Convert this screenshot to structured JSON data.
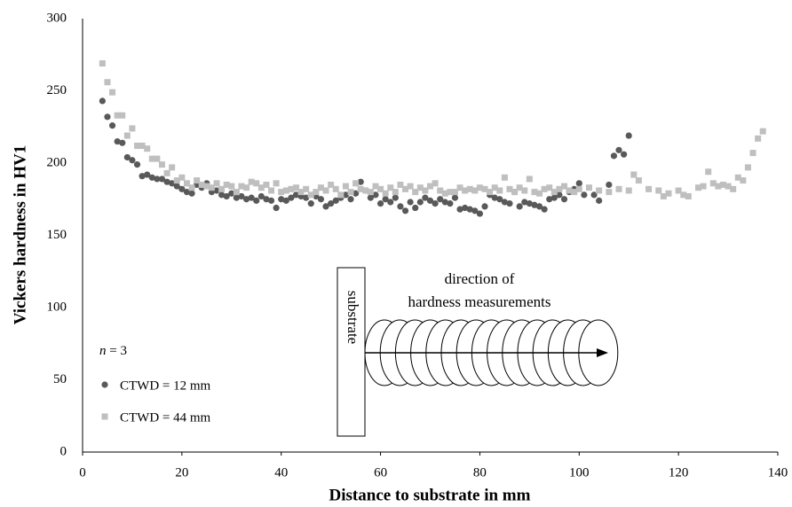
{
  "chart_data": {
    "type": "scatter",
    "xlabel": "Distance to substrate in mm",
    "ylabel": "Vickers hardness in HV1",
    "annotation": [
      "n",
      "= 3"
    ],
    "inset": {
      "block_label": "substrate",
      "direction_label": [
        "direction of",
        "hardness measurements"
      ]
    },
    "xlim": [
      0,
      140
    ],
    "xticks": [
      0,
      20,
      40,
      60,
      80,
      100,
      120,
      140
    ],
    "ylim": [
      0,
      300
    ],
    "yticks": [
      0,
      50,
      100,
      150,
      200,
      250,
      300
    ],
    "grid": false,
    "legend_position": "lower-left",
    "series": [
      {
        "name": "CTWD = 12 mm",
        "color": "#595959",
        "marker": "circle",
        "x": [
          4,
          5,
          6,
          7,
          8,
          9,
          10,
          11,
          12,
          13,
          14,
          15,
          16,
          17,
          18,
          19,
          20,
          21,
          22,
          23,
          24,
          25,
          26,
          27,
          28,
          29,
          30,
          31,
          32,
          33,
          34,
          35,
          36,
          37,
          38,
          39,
          40,
          41,
          42,
          43,
          44,
          45,
          46,
          47,
          48,
          49,
          50,
          51,
          52,
          53,
          54,
          55,
          56,
          57,
          58,
          59,
          60,
          61,
          62,
          63,
          64,
          65,
          66,
          67,
          68,
          69,
          70,
          71,
          72,
          73,
          74,
          75,
          76,
          77,
          78,
          79,
          80,
          81,
          82,
          83,
          84,
          85,
          86,
          87,
          88,
          89,
          90,
          91,
          92,
          93,
          94,
          95,
          96,
          97,
          98,
          99,
          100,
          101,
          103,
          104,
          106,
          107,
          108,
          109,
          110
        ],
        "values": [
          243,
          232,
          226,
          215,
          214,
          204,
          202,
          199,
          191,
          192,
          190,
          189,
          189,
          187,
          186,
          184,
          182,
          180,
          179,
          185,
          183,
          186,
          180,
          181,
          178,
          177,
          179,
          176,
          177,
          175,
          176,
          174,
          177,
          175,
          174,
          169,
          175,
          174,
          176,
          178,
          177,
          176,
          172,
          177,
          175,
          170,
          172,
          174,
          176,
          178,
          175,
          179,
          187,
          181,
          176,
          178,
          172,
          175,
          173,
          176,
          170,
          167,
          173,
          169,
          173,
          176,
          174,
          172,
          175,
          173,
          172,
          176,
          168,
          169,
          168,
          167,
          165,
          170,
          178,
          176,
          175,
          173,
          172,
          180,
          170,
          173,
          172,
          171,
          170,
          168,
          175,
          176,
          178,
          175,
          180,
          182,
          186,
          178,
          178,
          174,
          185,
          205,
          209,
          206,
          219
        ]
      },
      {
        "name": "CTWD = 44 mm",
        "color": "#bfbfbf",
        "marker": "square",
        "x": [
          4,
          5,
          6,
          7,
          8,
          9,
          10,
          11,
          12,
          13,
          14,
          15,
          16,
          17,
          18,
          19,
          20,
          21,
          22,
          23,
          24,
          25,
          26,
          27,
          28,
          29,
          30,
          31,
          32,
          33,
          34,
          35,
          36,
          37,
          38,
          39,
          40,
          41,
          42,
          43,
          44,
          45,
          46,
          47,
          48,
          49,
          50,
          51,
          52,
          53,
          54,
          55,
          56,
          57,
          58,
          59,
          60,
          61,
          62,
          63,
          64,
          65,
          66,
          67,
          68,
          69,
          70,
          71,
          72,
          73,
          74,
          75,
          76,
          77,
          78,
          79,
          80,
          81,
          82,
          83,
          84,
          85,
          86,
          87,
          88,
          89,
          90,
          91,
          92,
          93,
          94,
          95,
          96,
          97,
          98,
          99,
          100,
          102,
          104,
          106,
          108,
          110,
          111,
          112,
          114,
          116,
          117,
          118,
          120,
          121,
          122,
          124,
          125,
          126,
          127,
          128,
          129,
          130,
          131,
          132,
          133,
          134,
          135,
          136,
          137
        ],
        "values": [
          269,
          256,
          249,
          233,
          233,
          219,
          224,
          212,
          212,
          210,
          203,
          203,
          199,
          193,
          197,
          188,
          190,
          186,
          183,
          188,
          185,
          184,
          183,
          186,
          182,
          185,
          184,
          180,
          184,
          183,
          187,
          186,
          183,
          185,
          181,
          186,
          180,
          181,
          182,
          183,
          180,
          182,
          178,
          180,
          183,
          181,
          185,
          182,
          178,
          184,
          180,
          186,
          182,
          181,
          180,
          184,
          182,
          179,
          183,
          180,
          185,
          182,
          184,
          180,
          183,
          181,
          184,
          186,
          181,
          179,
          180,
          180,
          183,
          181,
          182,
          181,
          183,
          182,
          180,
          183,
          181,
          190,
          182,
          180,
          183,
          181,
          189,
          180,
          179,
          182,
          183,
          180,
          182,
          184,
          181,
          180,
          182,
          183,
          181,
          180,
          182,
          181,
          192,
          188,
          182,
          181,
          177,
          179,
          181,
          178,
          177,
          183,
          184,
          194,
          186,
          184,
          185,
          184,
          182,
          190,
          188,
          197,
          207,
          217,
          222
        ]
      }
    ]
  }
}
